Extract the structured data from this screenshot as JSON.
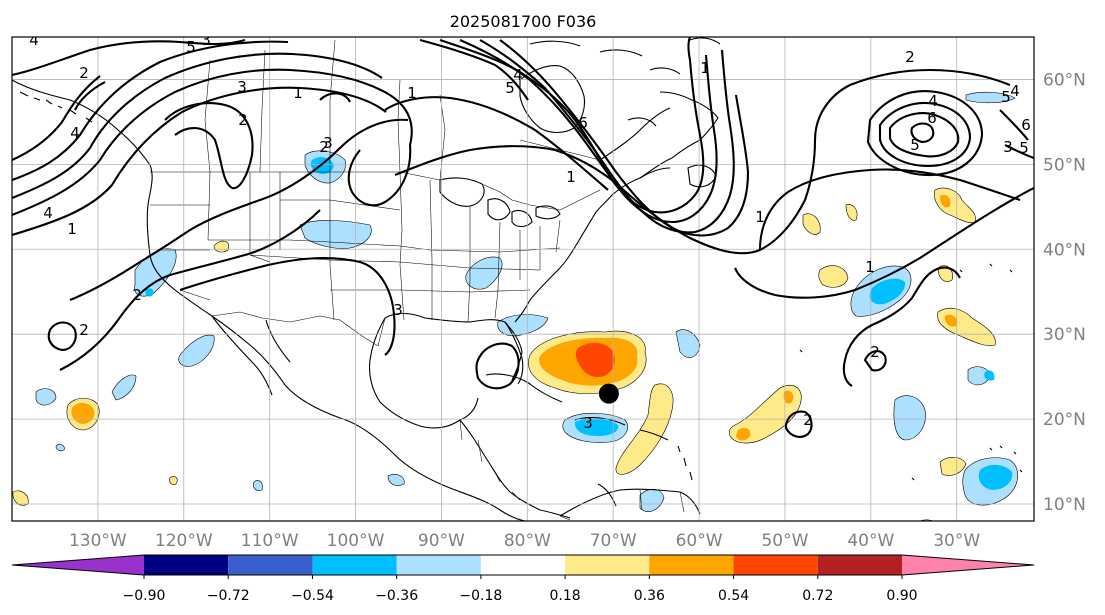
{
  "map": {
    "title": "2025081700 F036",
    "projection": "cylindrical",
    "lon_range": [
      -140,
      -21
    ],
    "lat_range": [
      8,
      65
    ],
    "lon_labels": [
      "130°W",
      "120°W",
      "110°W",
      "100°W",
      "90°W",
      "80°W",
      "70°W",
      "60°W",
      "50°W",
      "40°W",
      "30°W"
    ],
    "lat_labels": [
      "10°N",
      "20°N",
      "30°N",
      "40°N",
      "50°N",
      "60°N"
    ],
    "grid": true,
    "marker": {
      "name": "storm-center",
      "lon": -70.5,
      "lat": 23
    }
  },
  "colorbar": {
    "colors": [
      "#9932CC",
      "#000080",
      "#3A5FCD",
      "#00BFFF",
      "#ADDFFF",
      "#FFFFFF",
      "#FFEA8A",
      "#FFA500",
      "#FF4500",
      "#B22222",
      "#FF82AB"
    ],
    "tick_labels": [
      "−0.90",
      "−0.72",
      "−0.54",
      "−0.36",
      "−0.18",
      "0.18",
      "0.36",
      "0.54",
      "0.72",
      "0.90"
    ]
  },
  "contour_labels": [
    "4",
    "2",
    "4",
    "3",
    "5",
    "3",
    "1",
    "2",
    "2",
    "1",
    "4",
    "1",
    "2",
    "4",
    "5",
    "6",
    "1",
    "1",
    "2",
    "5",
    "4",
    "6",
    "5",
    "4",
    "6",
    "5",
    "3",
    "1",
    "2",
    "1",
    "2",
    "3",
    "2",
    "3",
    "3"
  ]
}
